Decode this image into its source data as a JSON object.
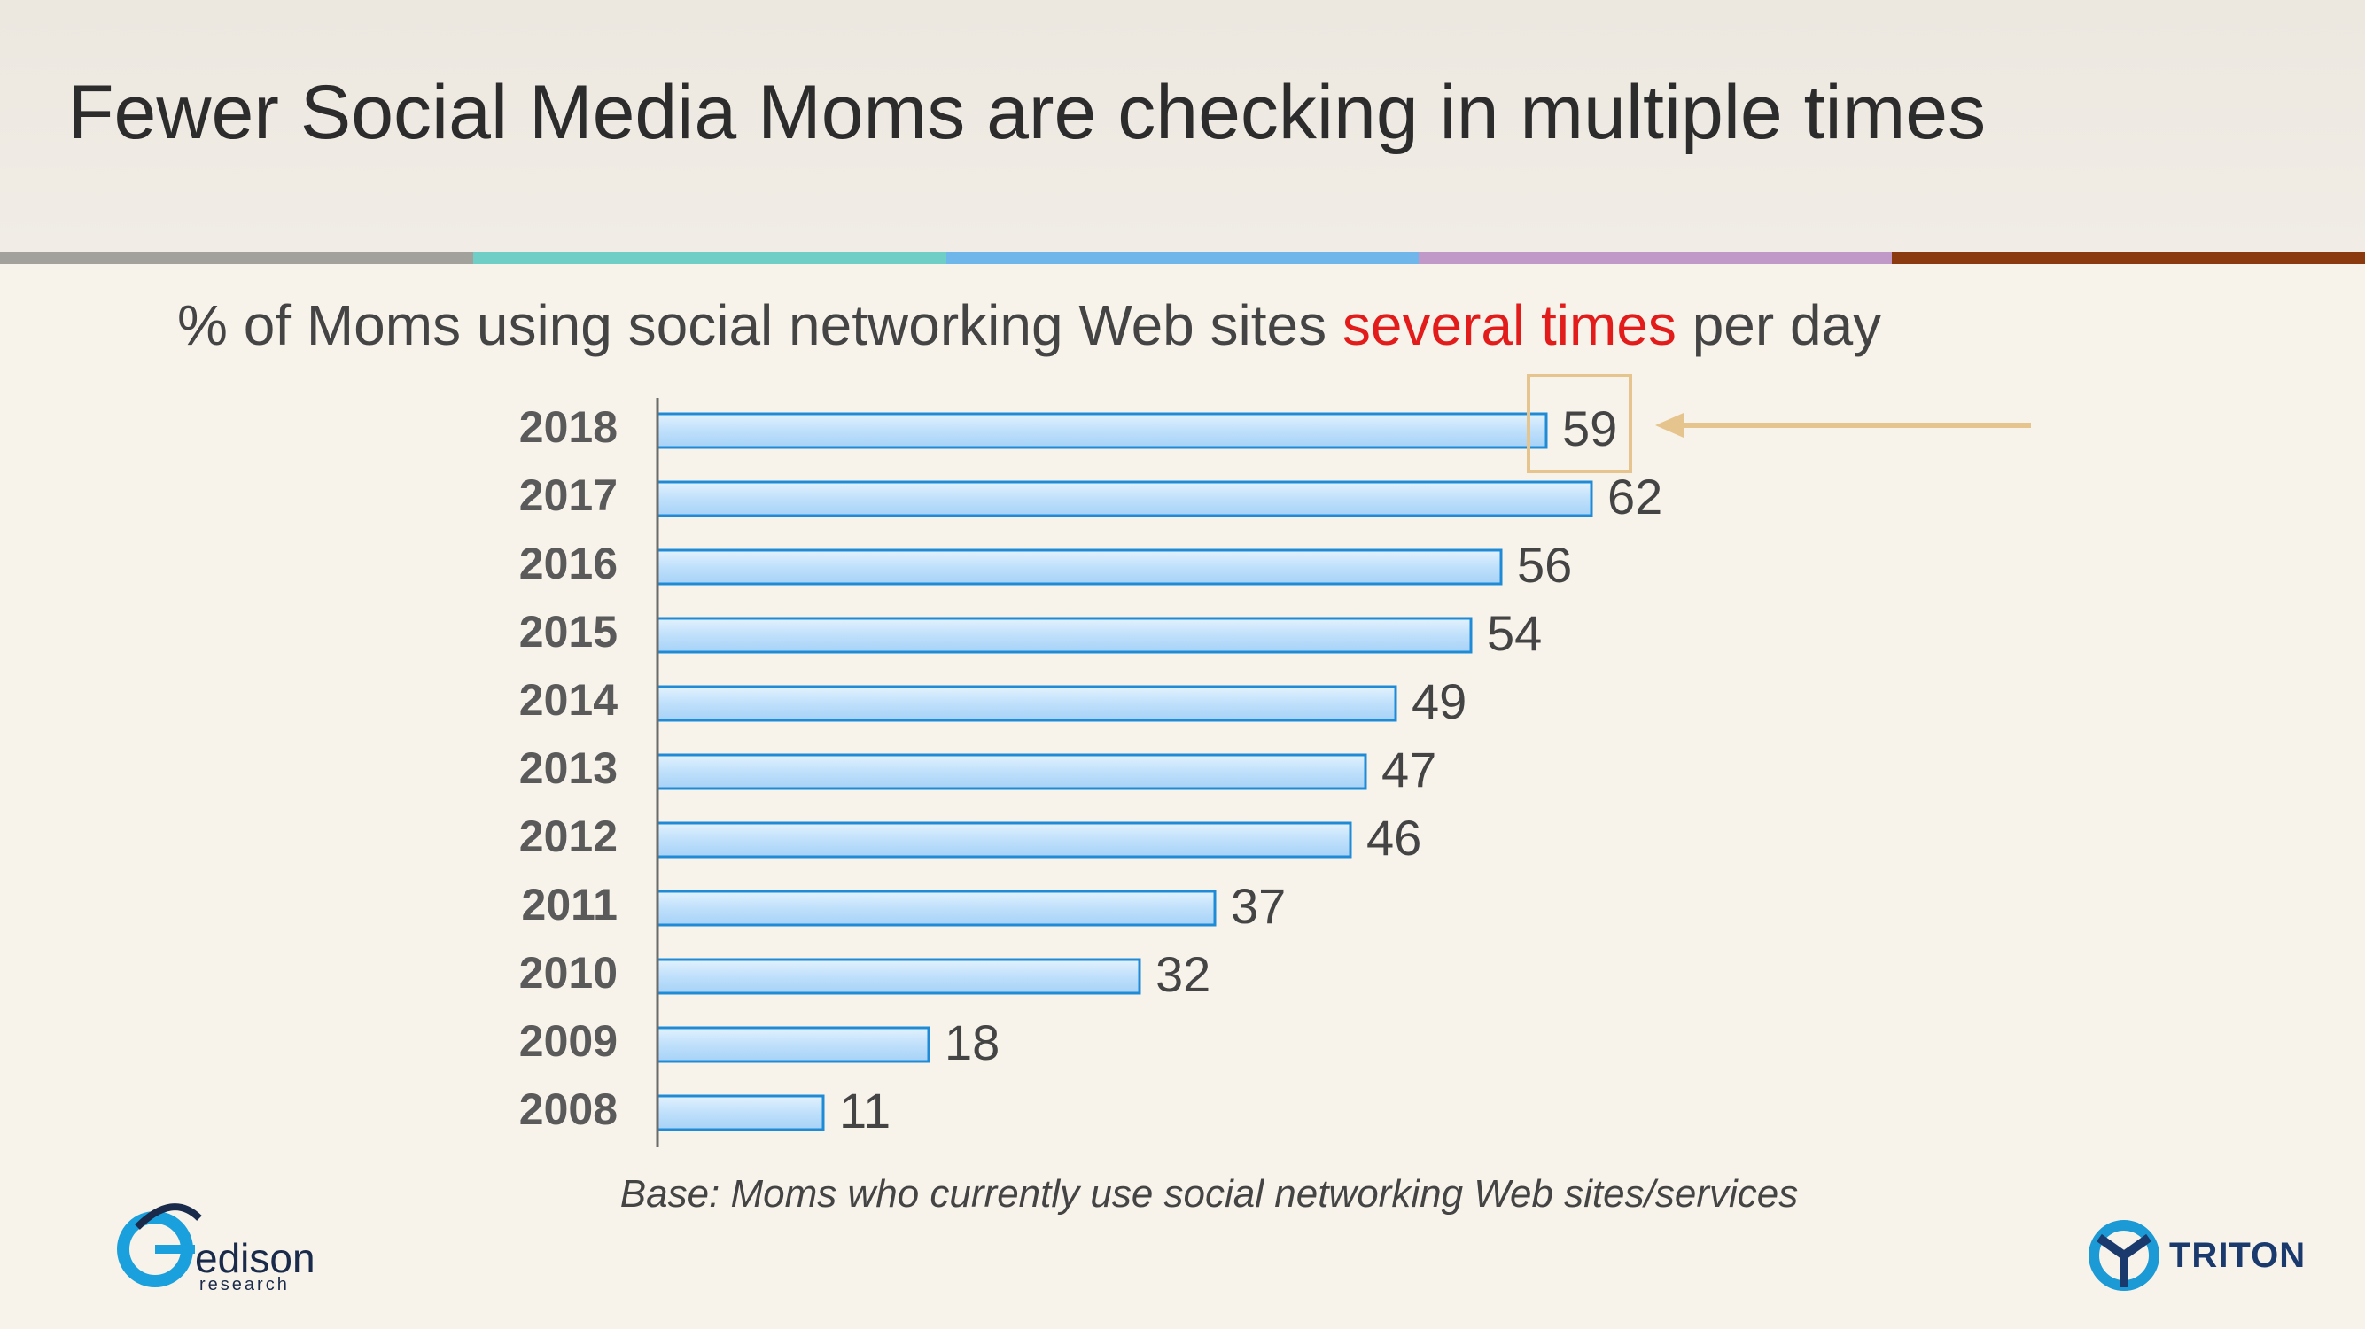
{
  "title": "Fewer Social Media Moms are checking in multiple times",
  "subtitle": {
    "before": "% of Moms using social networking Web sites ",
    "highlight": "several times",
    "after": " per day",
    "highlight_color": "#e21b1b"
  },
  "stripe_colors": [
    "#a3a19b",
    "#6fcfc6",
    "#6fb6ea",
    "#c199c9",
    "#8b3a0f"
  ],
  "chart_data": {
    "type": "bar",
    "orientation": "horizontal",
    "categories": [
      "2018",
      "2017",
      "2016",
      "2015",
      "2014",
      "2013",
      "2012",
      "2011",
      "2010",
      "2009",
      "2008"
    ],
    "values": [
      59,
      62,
      56,
      54,
      49,
      47,
      46,
      37,
      32,
      18,
      11
    ],
    "xlim": [
      0,
      100
    ],
    "highlighted_category": "2018",
    "highlight_color": "#e6c48e",
    "bar_color": "#bfe0fb",
    "bar_border": "#1f8bd6"
  },
  "base_note": "Base:  Moms who currently use social networking Web sites/services",
  "logos": {
    "edison": {
      "name": "edison",
      "sub": "research"
    },
    "triton": {
      "name": "TRITON"
    }
  }
}
